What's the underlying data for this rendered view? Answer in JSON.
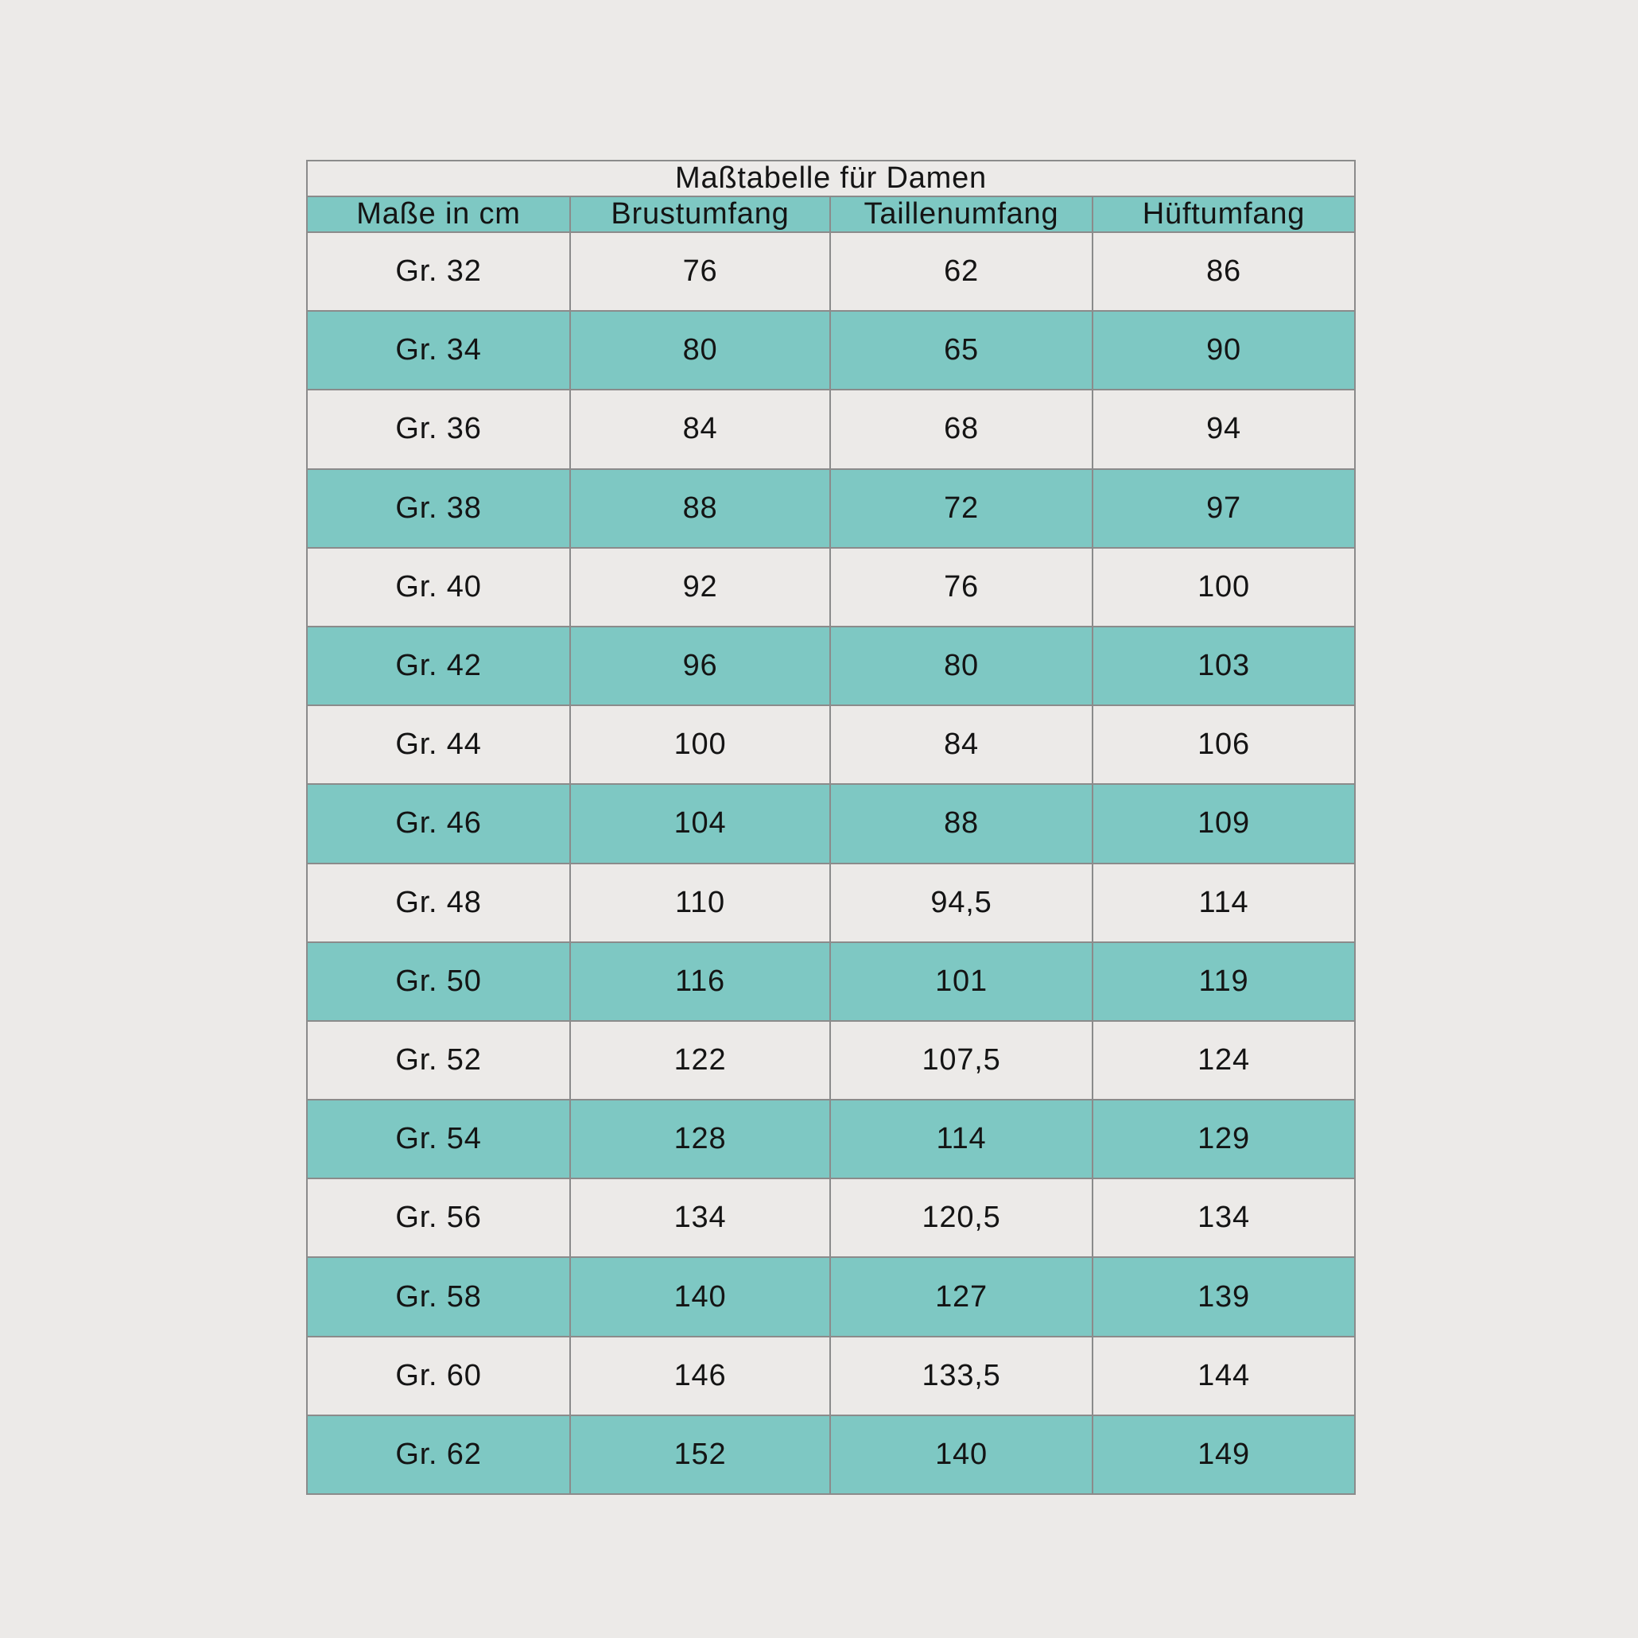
{
  "colors": {
    "teal": "#7ec8c3",
    "row-light": "#eceae8",
    "background": "#eceae8",
    "border": "#8b8b8b",
    "text": "#141414"
  },
  "table": {
    "title": "Maßtabelle für Damen",
    "columns": [
      "Maße in cm",
      "Brustumfang",
      "Taillenumfang",
      "Hüftumfang"
    ],
    "rows": [
      [
        "Gr. 32",
        "76",
        "62",
        "86"
      ],
      [
        "Gr. 34",
        "80",
        "65",
        "90"
      ],
      [
        "Gr. 36",
        "84",
        "68",
        "94"
      ],
      [
        "Gr. 38",
        "88",
        "72",
        "97"
      ],
      [
        "Gr. 40",
        "92",
        "76",
        "100"
      ],
      [
        "Gr. 42",
        "96",
        "80",
        "103"
      ],
      [
        "Gr. 44",
        "100",
        "84",
        "106"
      ],
      [
        "Gr. 46",
        "104",
        "88",
        "109"
      ],
      [
        "Gr. 48",
        "110",
        "94,5",
        "114"
      ],
      [
        "Gr. 50",
        "116",
        "101",
        "119"
      ],
      [
        "Gr. 52",
        "122",
        "107,5",
        "124"
      ],
      [
        "Gr. 54",
        "128",
        "114",
        "129"
      ],
      [
        "Gr. 56",
        "134",
        "120,5",
        "134"
      ],
      [
        "Gr. 58",
        "140",
        "127",
        "139"
      ],
      [
        "Gr. 60",
        "146",
        "133,5",
        "144"
      ],
      [
        "Gr. 62",
        "152",
        "140",
        "149"
      ]
    ]
  },
  "chart_data": {
    "type": "table",
    "title": "Maßtabelle für Damen",
    "columns": [
      "Maße in cm",
      "Brustumfang",
      "Taillenumfang",
      "Hüftumfang"
    ],
    "rows": [
      [
        "Gr. 32",
        76,
        62,
        86
      ],
      [
        "Gr. 34",
        80,
        65,
        90
      ],
      [
        "Gr. 36",
        84,
        68,
        94
      ],
      [
        "Gr. 38",
        88,
        72,
        97
      ],
      [
        "Gr. 40",
        92,
        76,
        100
      ],
      [
        "Gr. 42",
        96,
        80,
        103
      ],
      [
        "Gr. 44",
        100,
        84,
        106
      ],
      [
        "Gr. 46",
        104,
        88,
        109
      ],
      [
        "Gr. 48",
        110,
        94.5,
        114
      ],
      [
        "Gr. 50",
        116,
        101,
        119
      ],
      [
        "Gr. 52",
        122,
        107.5,
        124
      ],
      [
        "Gr. 54",
        128,
        114,
        129
      ],
      [
        "Gr. 56",
        134,
        120.5,
        134
      ],
      [
        "Gr. 58",
        140,
        127,
        139
      ],
      [
        "Gr. 60",
        146,
        133.5,
        144
      ],
      [
        "Gr. 62",
        152,
        140,
        149
      ]
    ],
    "units": "cm",
    "row_striping": [
      "light",
      "teal"
    ],
    "legend_position": "none",
    "grid": true
  }
}
